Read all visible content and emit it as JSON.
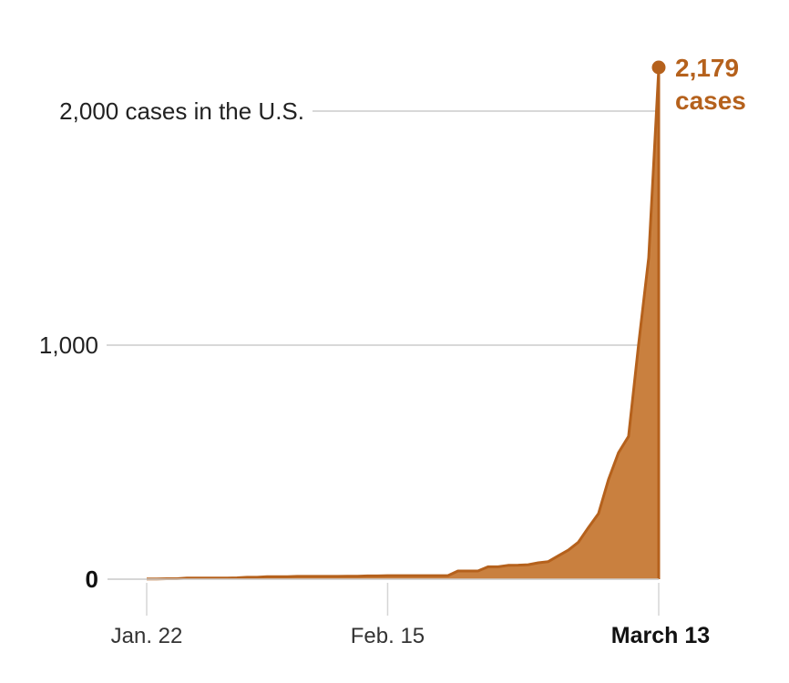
{
  "chart_data": {
    "type": "area",
    "title": "",
    "xlabel": "",
    "ylabel": "",
    "ylim": [
      0,
      2179
    ],
    "grid": true,
    "y_ticks": [
      {
        "value": 0,
        "label": "0"
      },
      {
        "value": 1000,
        "label": "1,000"
      },
      {
        "value": 2000,
        "label": "2,000 cases in the U.S."
      }
    ],
    "x_ticks": [
      {
        "index": 0,
        "label": "Jan. 22"
      },
      {
        "index": 24,
        "label": "Feb. 15"
      },
      {
        "index": 51,
        "label": "March 13"
      }
    ],
    "series": [
      {
        "name": "Cases in the U.S.",
        "values": [
          1,
          1,
          2,
          2,
          5,
          5,
          5,
          5,
          5,
          6,
          8,
          8,
          11,
          11,
          11,
          12,
          12,
          12,
          12,
          12,
          13,
          13,
          14,
          14,
          15,
          15,
          15,
          15,
          15,
          15,
          15,
          35,
          35,
          35,
          53,
          53,
          59,
          60,
          62,
          70,
          75,
          100,
          124,
          158,
          221,
          280,
          426,
          541,
          610,
          1006,
          1373,
          2179
        ]
      }
    ],
    "colors": {
      "line": "#b5611c",
      "fill": "#c9803f",
      "grid": "#cccccc",
      "axis": "#d0d0d0"
    },
    "annotation": {
      "value_label": "2,179",
      "unit_label": "cases"
    }
  }
}
